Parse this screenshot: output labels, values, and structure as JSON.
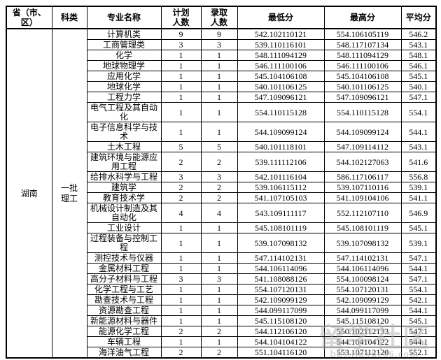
{
  "page": {
    "background": "#ffffff",
    "border_color": "#000000",
    "text_color": "#000000"
  },
  "table": {
    "columns": [
      "省（市、区）",
      "科类",
      "专业名称",
      "计划人数",
      "录取人数",
      "最低分",
      "最高分",
      "平均分"
    ],
    "province": "湖南",
    "category": "一批理工",
    "rows": [
      {
        "major": "计算机类",
        "plan": "9",
        "admitted": "9",
        "min": "542.102110121",
        "max": "554.106105119",
        "avg": "546.2"
      },
      {
        "major": "工商管理类",
        "plan": "3",
        "admitted": "3",
        "min": "539.110116101",
        "max": "548.117107134",
        "avg": "543.1"
      },
      {
        "major": "化学",
        "plan": "1",
        "admitted": "1",
        "min": "548.111094129",
        "max": "548.111094129",
        "avg": "548.1"
      },
      {
        "major": "地球物理学",
        "plan": "1",
        "admitted": "1",
        "min": "546.111100106",
        "max": "546.111100106",
        "avg": "546.1"
      },
      {
        "major": "应用化学",
        "plan": "1",
        "admitted": "1",
        "min": "545.104106108",
        "max": "545.104106108",
        "avg": "545.1"
      },
      {
        "major": "地球化学",
        "plan": "1",
        "admitted": "1",
        "min": "540.101106125",
        "max": "540.101106125",
        "avg": "540.1"
      },
      {
        "major": "工程力学",
        "plan": "1",
        "admitted": "1",
        "min": "547.109096121",
        "max": "547.109096121",
        "avg": "547.1"
      },
      {
        "major": "电气工程及其自动化",
        "plan": "1",
        "admitted": "1",
        "min": "554.110115128",
        "max": "554.110115128",
        "avg": "554.1"
      },
      {
        "major": "电子信息科学与技术",
        "plan": "1",
        "admitted": "1",
        "min": "544.109099124",
        "max": "544.109099124",
        "avg": "544.1"
      },
      {
        "major": "土木工程",
        "plan": "5",
        "admitted": "5",
        "min": "540.101118101",
        "max": "547.109114112",
        "avg": "543.1"
      },
      {
        "major": "建筑环境与能源应用工程",
        "plan": "2",
        "admitted": "2",
        "min": "539.111112106",
        "max": "544.102127063",
        "avg": "541.6"
      },
      {
        "major": "给排水科学与工程",
        "plan": "3",
        "admitted": "3",
        "min": "542.101116104",
        "max": "586.117106117",
        "avg": "556.8"
      },
      {
        "major": "建筑学",
        "plan": "2",
        "admitted": "2",
        "min": "539.106115112",
        "max": "539.107110116",
        "avg": "539.1"
      },
      {
        "major": "教育技术学",
        "plan": "2",
        "admitted": "2",
        "min": "541.107105103",
        "max": "541.109104106",
        "avg": "541.1"
      },
      {
        "major": "机械设计制造及其自动化",
        "plan": "4",
        "admitted": "4",
        "min": "543.109111117",
        "max": "552.112107110",
        "avg": "546.9"
      },
      {
        "major": "工业设计",
        "plan": "1",
        "admitted": "1",
        "min": "545.108101119",
        "max": "545.108101119",
        "avg": "545.1"
      },
      {
        "major": "过程装备与控制工程",
        "plan": "1",
        "admitted": "1",
        "min": "539.107098132",
        "max": "539.107098132",
        "avg": "539.1"
      },
      {
        "major": "测控技术与仪器",
        "plan": "1",
        "admitted": "1",
        "min": "547.114102131",
        "max": "547.114102131",
        "avg": "547.1"
      },
      {
        "major": "金属材料工程",
        "plan": "1",
        "admitted": "1",
        "min": "544.106114096",
        "max": "544.106114096",
        "avg": "544.1"
      },
      {
        "major": "高分子材料与工程",
        "plan": "3",
        "admitted": "3",
        "min": "541.108088126",
        "max": "554.100098124",
        "avg": "547.1"
      },
      {
        "major": "化学工程与工艺",
        "plan": "1",
        "admitted": "1",
        "min": "554.107120131",
        "max": "554.107120131",
        "avg": "554.1"
      },
      {
        "major": "勘查技术与工程",
        "plan": "1",
        "admitted": "1",
        "min": "542.109099129",
        "max": "542.109099129",
        "avg": "542.1"
      },
      {
        "major": "资源勘查工程",
        "plan": "1",
        "admitted": "1",
        "min": "544.099117099",
        "max": "544.099117099",
        "avg": "544.1"
      },
      {
        "major": "新能源材料与器件",
        "plan": "1",
        "admitted": "1",
        "min": "545.115108120",
        "max": "545.115108120",
        "avg": "545.1"
      },
      {
        "major": "能源化学工程",
        "plan": "2",
        "admitted": "2",
        "min": "544.112106120",
        "max": "550.102112133",
        "avg": "547.1"
      },
      {
        "major": "车辆工程",
        "plan": "1",
        "admitted": "1",
        "min": "544.104104122",
        "max": "544.104104122",
        "avg": "544.1"
      },
      {
        "major": "海洋油气工程",
        "plan": "2",
        "admitted": "2",
        "min": "551.104116120",
        "max": "553.107112120",
        "avg": "552.1"
      }
    ]
  },
  "watermark": {
    "line1": "留学社区",
    "line2": "bbs.liuxue86.com"
  }
}
